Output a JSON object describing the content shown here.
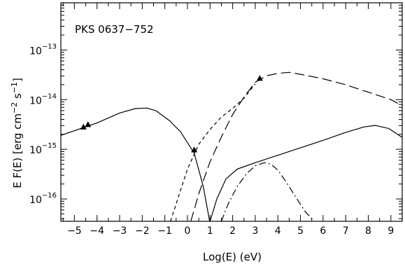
{
  "chart_data": {
    "type": "line",
    "title": "PKS 0637−752",
    "xlabel": "Log(E)  (eV)",
    "ylabel": "E F(E)  [erg cm",
    "ylabel_sup1": "−2",
    "ylabel_mid": " s",
    "ylabel_sup2": "−1",
    "ylabel_end": "]",
    "xlim": [
      -5.6,
      9.5
    ],
    "ylim_log10": [
      -16.45,
      -12.05
    ],
    "x_ticks": [
      -5,
      -4,
      -3,
      -2,
      -1,
      0,
      1,
      2,
      3,
      4,
      5,
      6,
      7,
      8,
      9
    ],
    "x_tick_labels": [
      "−5",
      "−4",
      "−3",
      "−2",
      "−1",
      "0",
      "1",
      "2",
      "3",
      "4",
      "5",
      "6",
      "7",
      "8",
      "9"
    ],
    "y_ticks_log10": [
      -16,
      -15,
      -14,
      -13
    ],
    "y_tick_labels": [
      {
        "base": "10",
        "exp": "−16"
      },
      {
        "base": "10",
        "exp": "−15"
      },
      {
        "base": "10",
        "exp": "−14"
      },
      {
        "base": "10",
        "exp": "−13"
      }
    ],
    "series": [
      {
        "style": "solid",
        "x": [
          -5.6,
          -4.0,
          -3.0,
          -2.3,
          -1.8,
          -1.4,
          -0.8,
          -0.3,
          0.3,
          0.7,
          0.98
        ],
        "log10y": [
          -14.72,
          -14.47,
          -14.27,
          -14.18,
          -14.17,
          -14.22,
          -14.42,
          -14.65,
          -15.08,
          -15.75,
          -16.45
        ]
      },
      {
        "style": "solid",
        "x": [
          1.0,
          1.3,
          1.7,
          2.2,
          3.0,
          4.0,
          5.0,
          6.0,
          7.0,
          7.8,
          8.3,
          8.9,
          9.5
        ],
        "log10y": [
          -16.45,
          -16.0,
          -15.6,
          -15.4,
          -15.27,
          -15.12,
          -14.97,
          -14.82,
          -14.66,
          -14.55,
          -14.52,
          -14.58,
          -14.76
        ]
      },
      {
        "style": "short-dash",
        "x": [
          -0.75,
          -0.5,
          0.0,
          0.5,
          1.0,
          1.5,
          2.0,
          2.5,
          3.0
        ],
        "log10y": [
          -16.45,
          -16.1,
          -15.4,
          -14.9,
          -14.6,
          -14.35,
          -14.18,
          -13.97,
          -13.68
        ]
      },
      {
        "style": "long-dash",
        "x": [
          0.15,
          0.5,
          1.0,
          1.5,
          2.0,
          2.5,
          3.0,
          3.5,
          4.0,
          4.5,
          5.0,
          6.0,
          7.0,
          8.0,
          9.0,
          9.5
        ],
        "log10y": [
          -16.45,
          -15.9,
          -15.25,
          -14.75,
          -14.3,
          -13.95,
          -13.65,
          -13.52,
          -13.47,
          -13.45,
          -13.49,
          -13.58,
          -13.7,
          -13.85,
          -14.0,
          -14.12
        ]
      },
      {
        "style": "dash-dot",
        "x": [
          1.5,
          1.8,
          2.2,
          2.6,
          3.0,
          3.4,
          3.7,
          4.0,
          4.4,
          4.8,
          5.2,
          5.6
        ],
        "log10y": [
          -16.45,
          -16.1,
          -15.75,
          -15.5,
          -15.33,
          -15.27,
          -15.3,
          -15.42,
          -15.68,
          -15.97,
          -16.25,
          -16.45
        ]
      }
    ],
    "markers": {
      "shape": "triangle",
      "x": [
        -4.6,
        -4.4,
        0.3,
        3.2
      ],
      "log10y": [
        -14.55,
        -14.5,
        -15.01,
        -13.57
      ]
    }
  }
}
